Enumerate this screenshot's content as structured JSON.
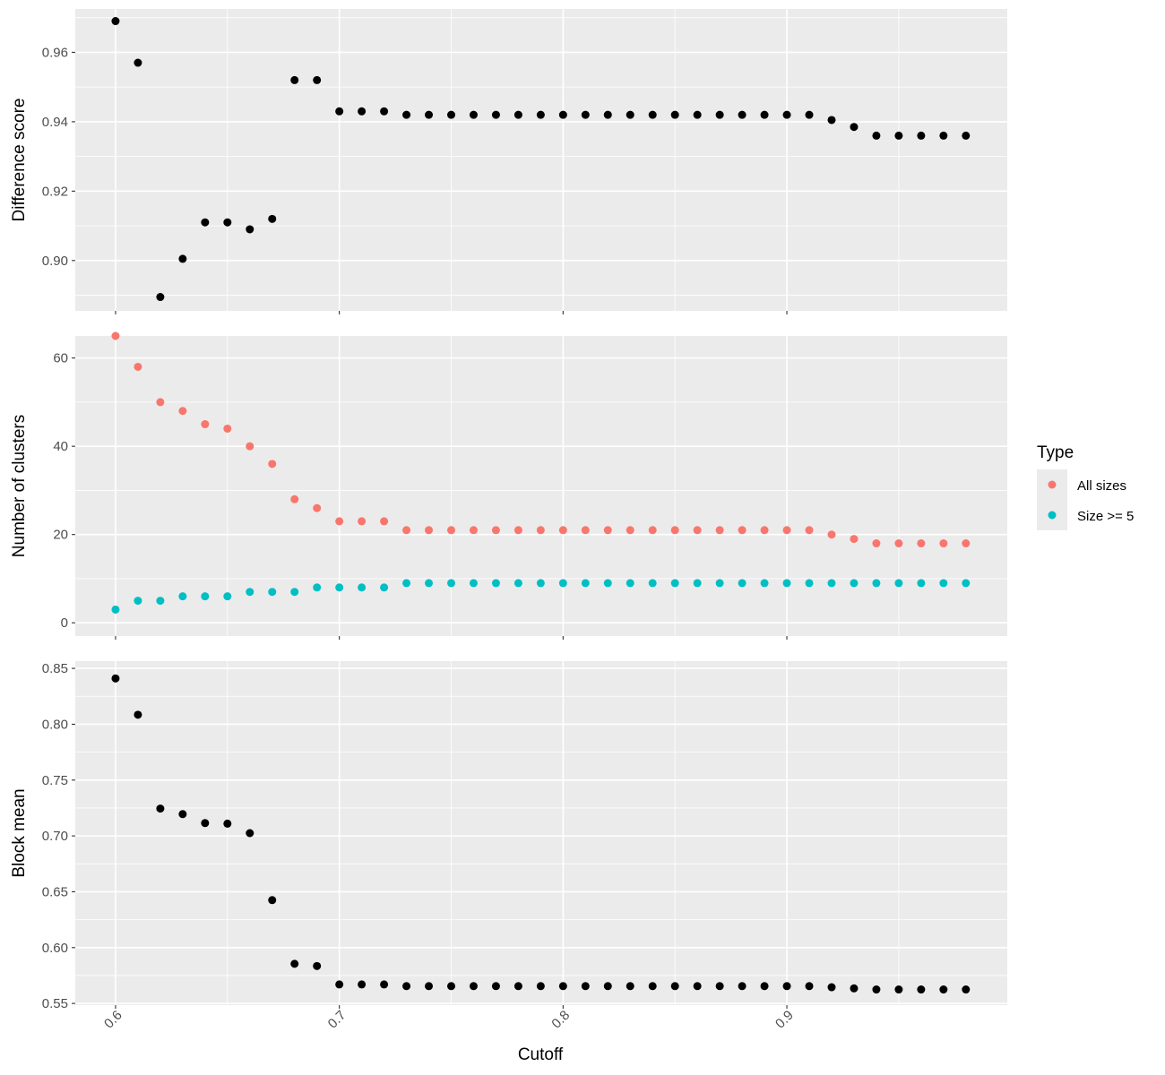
{
  "chart_data": {
    "type": "scatter",
    "layout": "faceted-vertical",
    "xlabel": "Cutoff",
    "xlim": [
      0.582,
      0.9985
    ],
    "xticks": [
      "0.6",
      "0.7",
      "0.8",
      "0.9"
    ],
    "x": [
      0.6,
      0.61,
      0.62,
      0.63,
      0.64,
      0.65,
      0.66,
      0.67,
      0.68,
      0.69,
      0.7,
      0.71,
      0.72,
      0.73,
      0.74,
      0.75,
      0.76,
      0.77,
      0.78,
      0.79,
      0.8,
      0.81,
      0.82,
      0.83,
      0.84,
      0.85,
      0.86,
      0.87,
      0.88,
      0.89,
      0.9,
      0.91,
      0.92,
      0.93,
      0.94,
      0.95,
      0.96,
      0.97,
      0.98
    ],
    "grid": true,
    "legend": {
      "title": "Type",
      "placement": "right",
      "entries": [
        {
          "label": "All sizes",
          "color": "#F8766D"
        },
        {
          "label": "Size >= 5",
          "color": "#00BFC4"
        }
      ]
    },
    "panels": [
      {
        "ylabel": "Difference score",
        "ylim": [
          0.8855,
          0.9725
        ],
        "yticks": [
          "0.90",
          "0.92",
          "0.94",
          "0.96"
        ],
        "series": [
          {
            "color": "#000000",
            "values": [
              0.969,
              0.957,
              0.8895,
              0.9005,
              0.911,
              0.911,
              0.909,
              0.912,
              0.952,
              0.952,
              0.943,
              0.943,
              0.943,
              0.942,
              0.942,
              0.942,
              0.942,
              0.942,
              0.942,
              0.942,
              0.942,
              0.942,
              0.942,
              0.942,
              0.942,
              0.942,
              0.942,
              0.942,
              0.942,
              0.942,
              0.942,
              0.942,
              0.9405,
              0.9385,
              0.936,
              0.936,
              0.936,
              0.936,
              0.936
            ]
          }
        ]
      },
      {
        "ylabel": "Number of clusters",
        "ylim": [
          -3,
          65
        ],
        "yticks": [
          "0",
          "20",
          "40",
          "60"
        ],
        "series": [
          {
            "name": "All sizes",
            "color": "#F8766D",
            "values": [
              65,
              58,
              50,
              48,
              45,
              44,
              40,
              36,
              28,
              26,
              23,
              23,
              23,
              21,
              21,
              21,
              21,
              21,
              21,
              21,
              21,
              21,
              21,
              21,
              21,
              21,
              21,
              21,
              21,
              21,
              21,
              21,
              20,
              19,
              18,
              18,
              18,
              18,
              18
            ]
          },
          {
            "name": "Size >= 5",
            "color": "#00BFC4",
            "values": [
              3,
              5,
              5,
              6,
              6,
              6,
              7,
              7,
              7,
              8,
              8,
              8,
              8,
              9,
              9,
              9,
              9,
              9,
              9,
              9,
              9,
              9,
              9,
              9,
              9,
              9,
              9,
              9,
              9,
              9,
              9,
              9,
              9,
              9,
              9,
              9,
              9,
              9,
              9
            ]
          }
        ]
      },
      {
        "ylabel": "Block mean",
        "ylim": [
          0.5485,
          0.8565
        ],
        "yticks": [
          "0.55",
          "0.60",
          "0.65",
          "0.70",
          "0.75",
          "0.80",
          "0.85"
        ],
        "series": [
          {
            "color": "#000000",
            "values": [
              0.841,
              0.8085,
              0.7245,
              0.7195,
              0.7115,
              0.711,
              0.7025,
              0.6425,
              0.5855,
              0.5835,
              0.567,
              0.567,
              0.567,
              0.5655,
              0.5655,
              0.5655,
              0.5655,
              0.5655,
              0.5655,
              0.5655,
              0.5655,
              0.5655,
              0.5655,
              0.5655,
              0.5655,
              0.5655,
              0.5655,
              0.5655,
              0.5655,
              0.5655,
              0.5655,
              0.5655,
              0.5645,
              0.5635,
              0.5625,
              0.5625,
              0.5625,
              0.5625,
              0.5625
            ]
          }
        ]
      }
    ]
  }
}
